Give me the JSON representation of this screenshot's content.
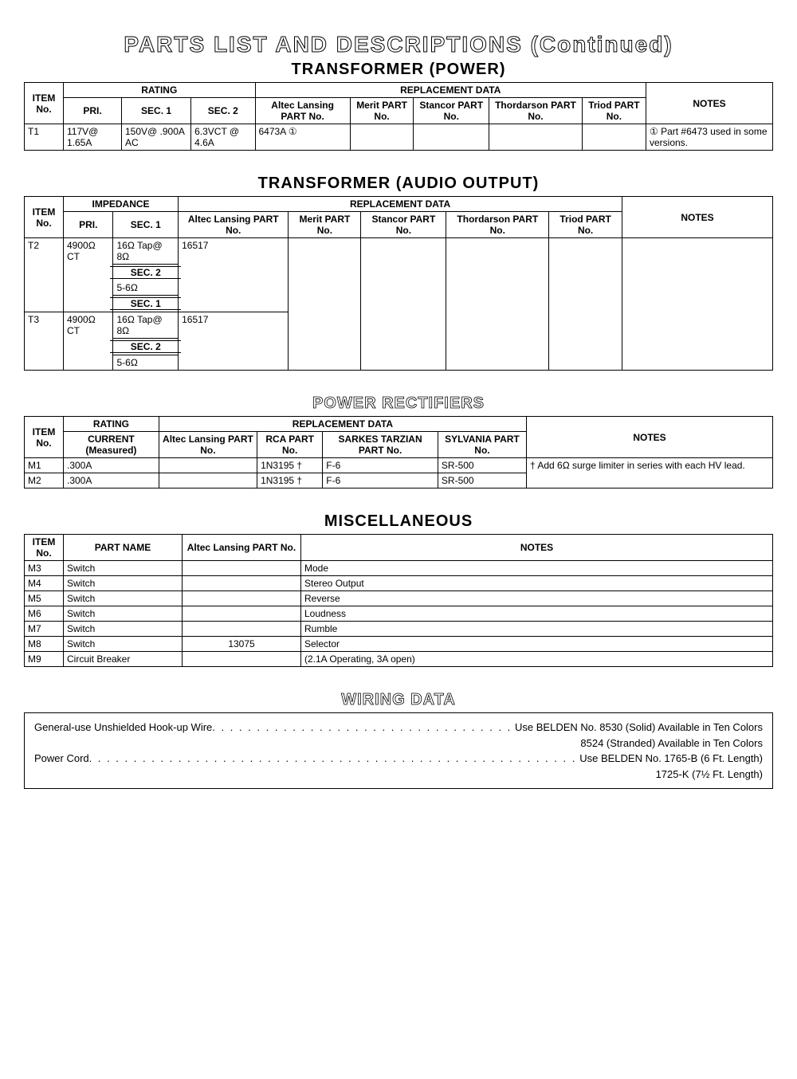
{
  "page_title": "PARTS LIST AND DESCRIPTIONS (Continued)",
  "sections": {
    "power_xfmr": {
      "title": "TRANSFORMER (POWER)",
      "headers": {
        "item": "ITEM No.",
        "rating": "RATING",
        "pri": "PRI.",
        "sec1": "SEC. 1",
        "sec2": "SEC. 2",
        "repl": "REPLACEMENT DATA",
        "altec": "Altec Lansing PART No.",
        "merit": "Merit PART No.",
        "stancor": "Stancor PART No.",
        "thord": "Thordarson PART No.",
        "triod": "Triod PART No.",
        "notes": "NOTES"
      },
      "rows": [
        {
          "item": "T1",
          "pri": "117V@ 1.65A",
          "sec1": "150V@ .900A AC",
          "sec2": "6.3VCT @ 4.6A",
          "altec": "6473A   ①",
          "merit": "",
          "stancor": "",
          "thord": "",
          "triod": "",
          "notes": "① Part #6473 used in some versions."
        }
      ]
    },
    "audio_xfmr": {
      "title": "TRANSFORMER (AUDIO OUTPUT)",
      "headers": {
        "item": "ITEM No.",
        "imp": "IMPEDANCE",
        "pri": "PRI.",
        "sec1": "SEC. 1",
        "sec2": "SEC. 2",
        "repl": "REPLACEMENT DATA",
        "altec": "Altec Lansing PART No.",
        "merit": "Merit PART No.",
        "stancor": "Stancor PART No.",
        "thord": "Thordarson PART No.",
        "triod": "Triod PART No.",
        "notes": "NOTES"
      },
      "rows": [
        {
          "item": "T2",
          "pri": "4900Ω CT",
          "sec1a": "16Ω Tap@ 8Ω",
          "sec2_lbl": "SEC. 2",
          "sec2a": "5-6Ω",
          "sec1_lbl": "SEC. 1",
          "altec": "16517"
        },
        {
          "item": "T3",
          "pri": "4900Ω CT",
          "sec1a": "16Ω Tap@ 8Ω",
          "sec2_lbl": "SEC. 2",
          "sec2a": "5-6Ω",
          "altec": "16517"
        }
      ]
    },
    "rectifiers": {
      "title": "POWER RECTIFIERS",
      "headers": {
        "item": "ITEM No.",
        "rating": "RATING",
        "current": "CURRENT (Measured)",
        "repl": "REPLACEMENT DATA",
        "altec": "Altec Lansing PART No.",
        "rca": "RCA PART No.",
        "sarkes": "SARKES TARZIAN PART No.",
        "sylvania": "SYLVANIA PART No.",
        "notes": "NOTES"
      },
      "rows": [
        {
          "item": "M1",
          "current": ".300A",
          "altec": "",
          "rca": "1N3195 †",
          "sarkes": "F-6",
          "sylvania": "SR-500",
          "notes": "† Add 6Ω surge limiter in series with each HV lead."
        },
        {
          "item": "M2",
          "current": ".300A",
          "altec": "",
          "rca": "1N3195 †",
          "sarkes": "F-6",
          "sylvania": "SR-500",
          "notes": ""
        }
      ]
    },
    "misc": {
      "title": "MISCELLANEOUS",
      "headers": {
        "item": "ITEM No.",
        "name": "PART NAME",
        "altec": "Altec Lansing PART No.",
        "notes": "NOTES"
      },
      "rows": [
        {
          "item": "M3",
          "name": "Switch",
          "altec": "",
          "notes": "Mode"
        },
        {
          "item": "M4",
          "name": "Switch",
          "altec": "",
          "notes": "Stereo Output"
        },
        {
          "item": "M5",
          "name": "Switch",
          "altec": "",
          "notes": "Reverse"
        },
        {
          "item": "M6",
          "name": "Switch",
          "altec": "",
          "notes": "Loudness"
        },
        {
          "item": "M7",
          "name": "Switch",
          "altec": "",
          "notes": "Rumble"
        },
        {
          "item": "M8",
          "name": "Switch",
          "altec": "13075",
          "notes": "Selector"
        },
        {
          "item": "M9",
          "name": "Circuit Breaker",
          "altec": "",
          "notes": "(2.1A Operating, 3A open)"
        }
      ]
    },
    "wiring": {
      "title": "WIRING DATA",
      "lines": [
        {
          "label": "General-use Unshielded Hook-up Wire",
          "use": "Use BELDEN No.",
          "val": "8530 (Solid) Available in Ten Colors"
        },
        {
          "label": "",
          "use": "",
          "val": "8524 (Stranded) Available in Ten Colors"
        },
        {
          "label": "Power Cord",
          "use": "Use BELDEN No.",
          "val": "1765-B (6 Ft. Length)"
        },
        {
          "label": "",
          "use": "",
          "val": "1725-K (7½ Ft. Length)"
        }
      ]
    }
  }
}
